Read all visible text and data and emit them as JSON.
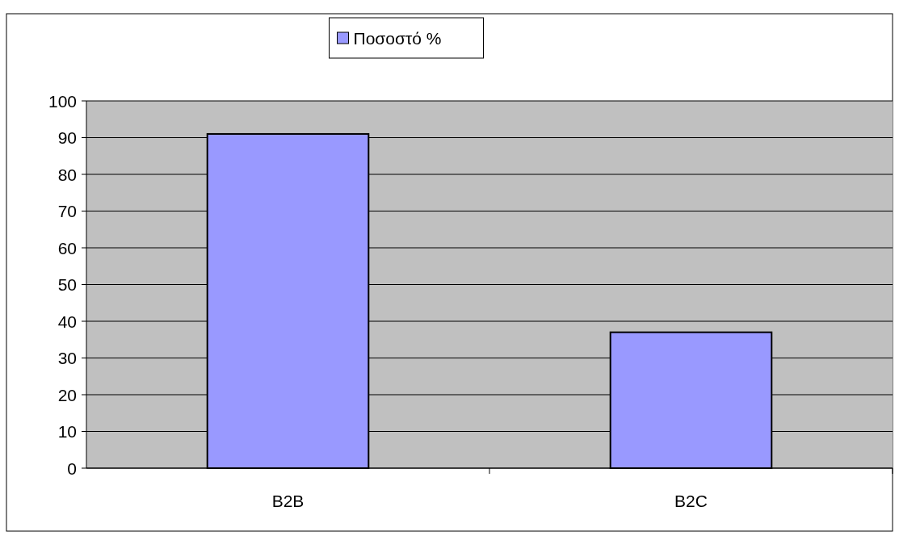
{
  "chart_data": {
    "type": "bar",
    "categories": [
      "B2B",
      "B2C"
    ],
    "series": [
      {
        "name": "Ποσοστό %",
        "color": "#9999ff",
        "values": [
          91,
          37
        ]
      }
    ],
    "ylim": [
      0,
      100
    ],
    "yticks": [
      0,
      10,
      20,
      30,
      40,
      50,
      60,
      70,
      80,
      90,
      100
    ],
    "grid": "y",
    "legend": "top"
  }
}
